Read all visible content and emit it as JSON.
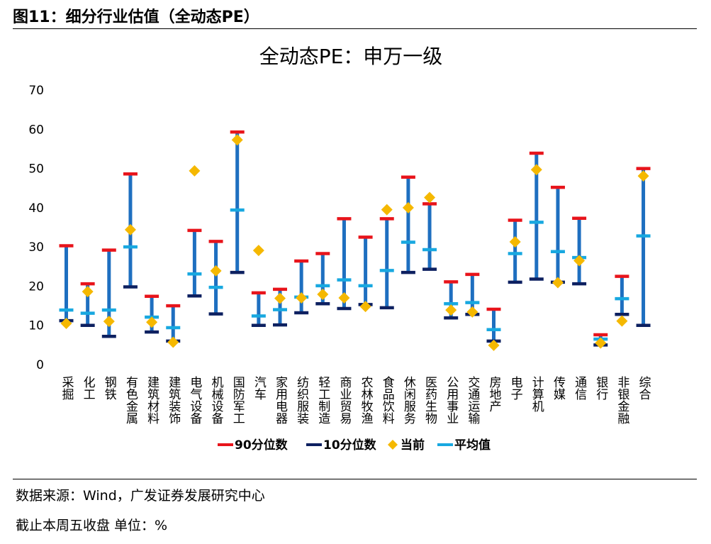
{
  "figure_title": "图11：细分行业估值（全动态PE）",
  "source_note": "数据来源：Wind，广发证券发展研究中心",
  "unit_note": "截止本周五收盘 单位：%",
  "colors": {
    "p90": "#e8141b",
    "p10": "#0d2060",
    "current": "#f5b800",
    "mean": "#18a8e0",
    "range_bar": "#1e6fc0"
  },
  "chart_data": {
    "type": "range",
    "title": "全动态PE：申万一级",
    "xlabel": "",
    "ylabel": "",
    "ylim": [
      0,
      70
    ],
    "yticks": [
      0,
      10,
      20,
      30,
      40,
      50,
      60,
      70
    ],
    "grid": false,
    "legend_position": "bottom",
    "categories": [
      "采掘",
      "化工",
      "钢铁",
      "有色金属",
      "建筑材料",
      "建筑装饰",
      "电气设备",
      "机械设备",
      "国防军工",
      "汽车",
      "家用电器",
      "纺织服装",
      "轻工制造",
      "商业贸易",
      "农林牧渔",
      "食品饮料",
      "休闲服务",
      "医药生物",
      "公用事业",
      "交通运输",
      "房地产",
      "电子",
      "计算机",
      "传媒",
      "通信",
      "银行",
      "非银金融",
      "综合"
    ],
    "series": [
      {
        "name": "90分位数",
        "values": [
          30.3,
          20.6,
          29.2,
          48.6,
          17.4,
          15.0,
          34.2,
          31.4,
          59.3,
          18.3,
          19.2,
          26.4,
          28.3,
          37.2,
          32.5,
          37.2,
          47.8,
          41.0,
          21.1,
          23.0,
          14.1,
          36.8,
          53.9,
          45.2,
          37.3,
          7.6,
          22.5,
          50.0
        ]
      },
      {
        "name": "10分位数",
        "values": [
          11.2,
          10.0,
          7.2,
          19.8,
          8.3,
          6.0,
          17.5,
          12.9,
          23.5,
          10.0,
          10.1,
          13.2,
          15.5,
          14.3,
          15.3,
          14.5,
          23.5,
          24.3,
          11.9,
          12.8,
          6.0,
          21.0,
          21.8,
          21.0,
          20.6,
          5.0,
          12.8,
          10.0
        ]
      },
      {
        "name": "当前",
        "values": [
          10.5,
          18.6,
          11.0,
          34.4,
          10.8,
          5.7,
          49.4,
          23.9,
          57.3,
          29.1,
          16.9,
          17.0,
          17.9,
          17.0,
          14.8,
          39.5,
          40.0,
          42.6,
          13.9,
          13.4,
          4.9,
          31.3,
          49.7,
          20.9,
          26.5,
          5.5,
          11.1,
          48.1
        ]
      },
      {
        "name": "平均值",
        "values": [
          13.9,
          13.1,
          13.9,
          30.0,
          12.1,
          9.4,
          23.1,
          19.7,
          39.4,
          12.4,
          14.0,
          17.2,
          20.1,
          21.6,
          20.1,
          24.0,
          31.2,
          29.3,
          15.5,
          15.8,
          8.9,
          28.3,
          36.3,
          28.8,
          27.3,
          6.5,
          16.8,
          32.8
        ]
      }
    ]
  }
}
